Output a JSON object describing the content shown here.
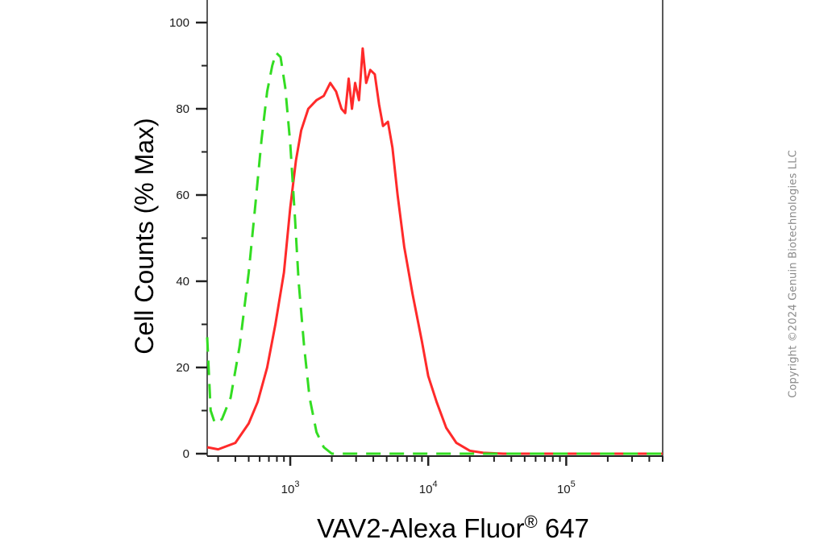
{
  "chart_data": {
    "type": "line",
    "xlabel": "VAV2-Alexa Fluor",
    "xlabel_superscript": "®",
    "xlabel_suffix": " 647",
    "ylabel": "Cell Counts (% Max)",
    "x_scale": "log",
    "xlim": [
      250,
      500000
    ],
    "ylim": [
      0,
      100
    ],
    "x_ticks": [
      {
        "base": "10",
        "exp": "3",
        "value": 1000
      },
      {
        "base": "10",
        "exp": "4",
        "value": 10000
      },
      {
        "base": "10",
        "exp": "5",
        "value": 100000
      }
    ],
    "y_ticks": [
      "0",
      "20",
      "40",
      "60",
      "80",
      "100"
    ],
    "grid": false,
    "legend": "none",
    "series": [
      {
        "color": "#ff2a2a",
        "style": "solid",
        "points": [
          [
            250,
            1.5
          ],
          [
            300,
            1.0
          ],
          [
            400,
            2.5
          ],
          [
            500,
            7
          ],
          [
            580,
            12
          ],
          [
            680,
            20
          ],
          [
            780,
            30
          ],
          [
            900,
            42
          ],
          [
            1000,
            57
          ],
          [
            1100,
            68
          ],
          [
            1200,
            75
          ],
          [
            1350,
            80
          ],
          [
            1550,
            82
          ],
          [
            1750,
            83
          ],
          [
            1950,
            86
          ],
          [
            2150,
            84
          ],
          [
            2350,
            80
          ],
          [
            2500,
            79
          ],
          [
            2650,
            87
          ],
          [
            2800,
            80
          ],
          [
            2950,
            86
          ],
          [
            3150,
            82
          ],
          [
            3350,
            94
          ],
          [
            3550,
            86
          ],
          [
            3800,
            89
          ],
          [
            4100,
            88
          ],
          [
            4400,
            81
          ],
          [
            4700,
            76
          ],
          [
            5100,
            77
          ],
          [
            5500,
            71
          ],
          [
            6000,
            60
          ],
          [
            6700,
            48
          ],
          [
            7700,
            37
          ],
          [
            9000,
            26
          ],
          [
            10000,
            18
          ],
          [
            11500,
            12
          ],
          [
            13500,
            6
          ],
          [
            16000,
            2.5
          ],
          [
            20000,
            0.7
          ],
          [
            25000,
            0.2
          ],
          [
            35000,
            0.0
          ],
          [
            500000,
            0.0
          ]
        ]
      },
      {
        "color": "#33dd22",
        "style": "dashed",
        "points": [
          [
            250,
            27
          ],
          [
            265,
            10
          ],
          [
            285,
            7
          ],
          [
            320,
            8
          ],
          [
            370,
            13
          ],
          [
            430,
            25
          ],
          [
            500,
            42
          ],
          [
            560,
            58
          ],
          [
            620,
            73
          ],
          [
            680,
            84
          ],
          [
            740,
            90
          ],
          [
            790,
            93
          ],
          [
            850,
            92
          ],
          [
            920,
            85
          ],
          [
            1000,
            72
          ],
          [
            1080,
            55
          ],
          [
            1150,
            40
          ],
          [
            1260,
            25
          ],
          [
            1380,
            13
          ],
          [
            1550,
            5
          ],
          [
            1750,
            1.5
          ],
          [
            2000,
            0.0
          ],
          [
            500000,
            0.0
          ]
        ]
      }
    ]
  },
  "watermark": {
    "text": "Copyright ©2024 Genuin Biotechnologies LLC"
  }
}
